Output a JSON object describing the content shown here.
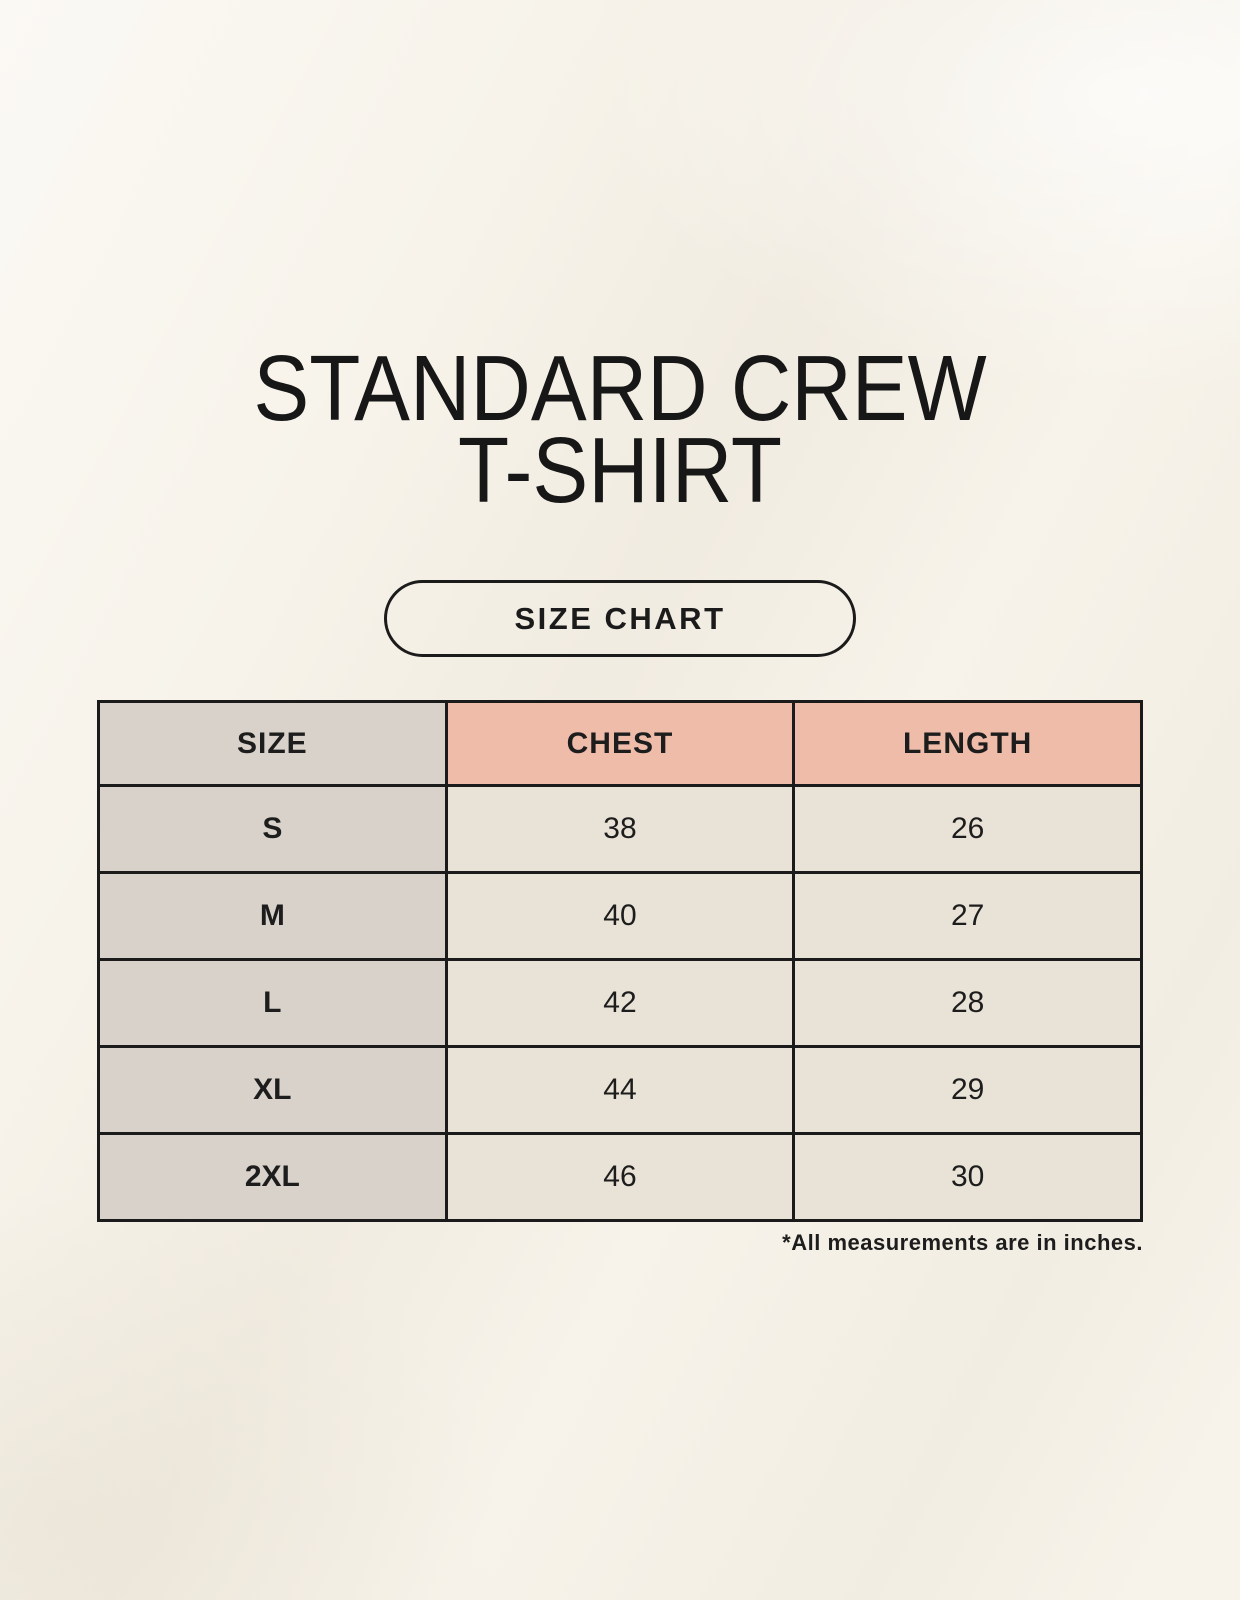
{
  "page": {
    "title_line1": "STANDARD CREW",
    "title_line2": "T-SHIRT",
    "button_label": "SIZE CHART",
    "footnote": "*All measurements are in inches."
  },
  "size_table": {
    "headers": [
      "SIZE",
      "CHEST",
      "LENGTH"
    ],
    "rows": [
      {
        "size": "S",
        "chest": "38",
        "length": "26"
      },
      {
        "size": "M",
        "chest": "40",
        "length": "27"
      },
      {
        "size": "L",
        "chest": "42",
        "length": "28"
      },
      {
        "size": "XL",
        "chest": "44",
        "length": "29"
      },
      {
        "size": "2XL",
        "chest": "46",
        "length": "30"
      }
    ],
    "units": "inches"
  },
  "colors": {
    "background": "#f7f3ea",
    "header_size_bg": "#d9d2cb",
    "header_measure_bg": "#efbca9",
    "data_cell_bg": "#e9e2d6",
    "border": "#1b1b1b",
    "text": "#1d1d1d"
  }
}
